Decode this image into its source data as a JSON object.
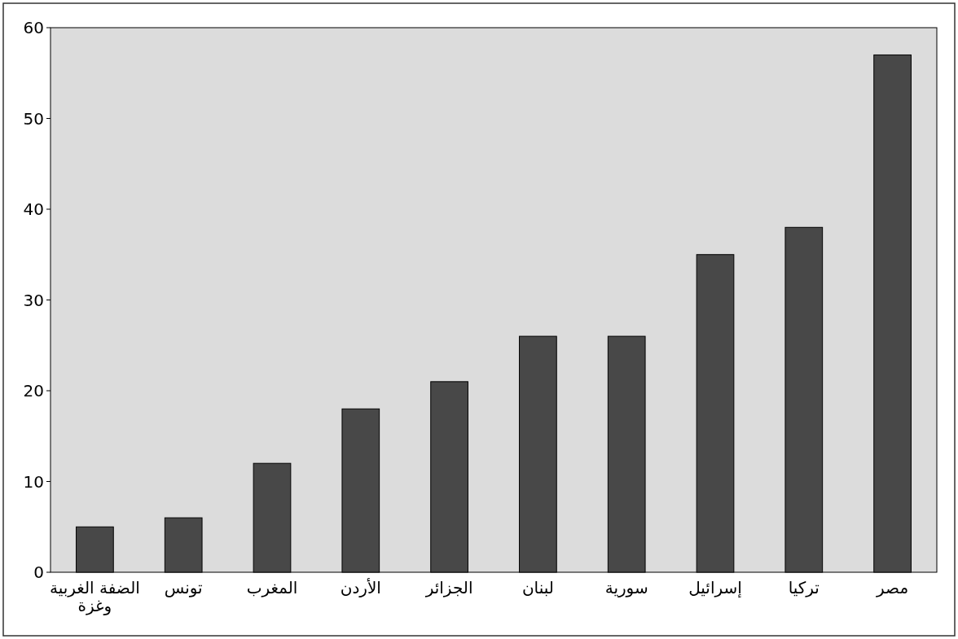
{
  "chart_data": {
    "type": "bar",
    "categories": [
      "الضفة الغربية\nوغزة",
      "تونس",
      "المغرب",
      "الأردن",
      "الجزائر",
      "لبنان",
      "سورية",
      "إسرائيل",
      "تركيا",
      "مصر"
    ],
    "values": [
      5,
      6,
      12,
      18,
      21,
      26,
      26,
      35,
      38,
      57
    ],
    "color": "#484848",
    "ylim": [
      0,
      60
    ],
    "yticks": [
      0,
      10,
      20,
      30,
      40,
      50,
      60
    ],
    "grid": false
  }
}
